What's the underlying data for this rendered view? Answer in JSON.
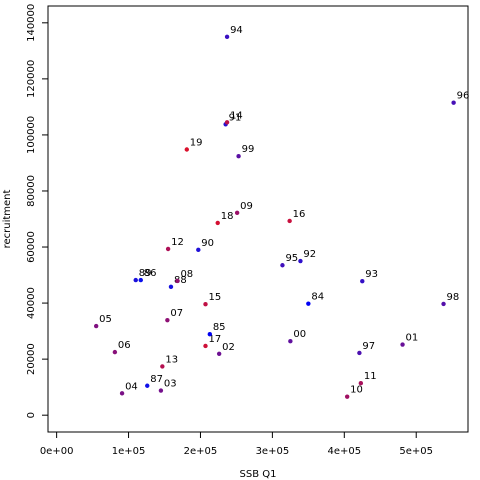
{
  "chart_data": {
    "type": "scatter",
    "xlabel": "SSB Q1",
    "ylabel": "recruitment",
    "xlim": [
      -12000,
      572000
    ],
    "ylim": [
      -6000,
      146000
    ],
    "x_ticks": [
      {
        "value": 0,
        "label": "0e+00"
      },
      {
        "value": 100000,
        "label": "1e+05"
      },
      {
        "value": 200000,
        "label": "2e+05"
      },
      {
        "value": 300000,
        "label": "3e+05"
      },
      {
        "value": 400000,
        "label": "4e+05"
      },
      {
        "value": 500000,
        "label": "5e+05"
      }
    ],
    "y_ticks": [
      {
        "value": 0,
        "label": "0"
      },
      {
        "value": 20000,
        "label": "20000"
      },
      {
        "value": 40000,
        "label": "40000"
      },
      {
        "value": 60000,
        "label": "60000"
      },
      {
        "value": 80000,
        "label": "80000"
      },
      {
        "value": 100000,
        "label": "100000"
      },
      {
        "value": 120000,
        "label": "120000"
      },
      {
        "value": 140000,
        "label": "140000"
      }
    ],
    "colors": {
      "early": "#0000ee",
      "late": "#ee0000"
    },
    "points": [
      {
        "label": "87",
        "x": 126000,
        "y": 10500,
        "color": "#1010e8"
      },
      {
        "label": "88",
        "x": 159000,
        "y": 45800,
        "color": "#1510e0"
      },
      {
        "label": "89",
        "x": 110000,
        "y": 48200,
        "color": "#1a10dc"
      },
      {
        "label": "90",
        "x": 197000,
        "y": 59000,
        "color": "#2010d8"
      },
      {
        "label": "91",
        "x": 235000,
        "y": 103800,
        "color": "#2810d0"
      },
      {
        "label": "92",
        "x": 339000,
        "y": 55000,
        "color": "#2e10cc"
      },
      {
        "label": "93",
        "x": 425000,
        "y": 47800,
        "color": "#3410c6"
      },
      {
        "label": "94",
        "x": 237000,
        "y": 135000,
        "color": "#3a10c2"
      },
      {
        "label": "95",
        "x": 314000,
        "y": 53500,
        "color": "#4010bc"
      },
      {
        "label": "96",
        "x": 552000,
        "y": 111500,
        "color": "#4610b6"
      },
      {
        "label": "97",
        "x": 421000,
        "y": 22200,
        "color": "#4c10b0"
      },
      {
        "label": "98",
        "x": 538000,
        "y": 39700,
        "color": "#5410aa"
      },
      {
        "label": "99",
        "x": 253000,
        "y": 92400,
        "color": "#5a10a4"
      },
      {
        "label": "00",
        "x": 325000,
        "y": 26400,
        "color": "#60109e"
      },
      {
        "label": "01",
        "x": 481000,
        "y": 25200,
        "color": "#681098"
      },
      {
        "label": "02",
        "x": 226000,
        "y": 21900,
        "color": "#6e1092"
      },
      {
        "label": "03",
        "x": 145000,
        "y": 8800,
        "color": "#74108c"
      },
      {
        "label": "04",
        "x": 91000,
        "y": 7800,
        "color": "#7a1086"
      },
      {
        "label": "05",
        "x": 55000,
        "y": 31800,
        "color": "#801080"
      },
      {
        "label": "06",
        "x": 81000,
        "y": 22500,
        "color": "#88107a"
      },
      {
        "label": "07",
        "x": 154000,
        "y": 33900,
        "color": "#8e1074"
      },
      {
        "label": "08",
        "x": 168000,
        "y": 47900,
        "color": "#94106e"
      },
      {
        "label": "09",
        "x": 251000,
        "y": 72200,
        "color": "#9a1068"
      },
      {
        "label": "10",
        "x": 404000,
        "y": 6600,
        "color": "#a01062"
      },
      {
        "label": "11",
        "x": 423000,
        "y": 11400,
        "color": "#a8105c"
      },
      {
        "label": "12",
        "x": 155000,
        "y": 59300,
        "color": "#ae1056"
      },
      {
        "label": "13",
        "x": 147000,
        "y": 17400,
        "color": "#b41050"
      },
      {
        "label": "14",
        "x": 237000,
        "y": 104500,
        "color": "#ba104a"
      },
      {
        "label": "15",
        "x": 207000,
        "y": 39600,
        "color": "#c01044"
      },
      {
        "label": "16",
        "x": 324000,
        "y": 69300,
        "color": "#c8103e"
      },
      {
        "label": "17",
        "x": 207000,
        "y": 24700,
        "color": "#ce1038"
      },
      {
        "label": "18",
        "x": 224000,
        "y": 68600,
        "color": "#d41032"
      },
      {
        "label": "19",
        "x": 181000,
        "y": 94800,
        "color": "#da102c"
      },
      {
        "label": "85",
        "x": 213000,
        "y": 28900,
        "color": "#0000f0"
      },
      {
        "label": "84",
        "x": 350000,
        "y": 39800,
        "color": "#0000f4"
      },
      {
        "label": "86",
        "x": 117000,
        "y": 48200,
        "color": "#0a10ec"
      }
    ]
  }
}
